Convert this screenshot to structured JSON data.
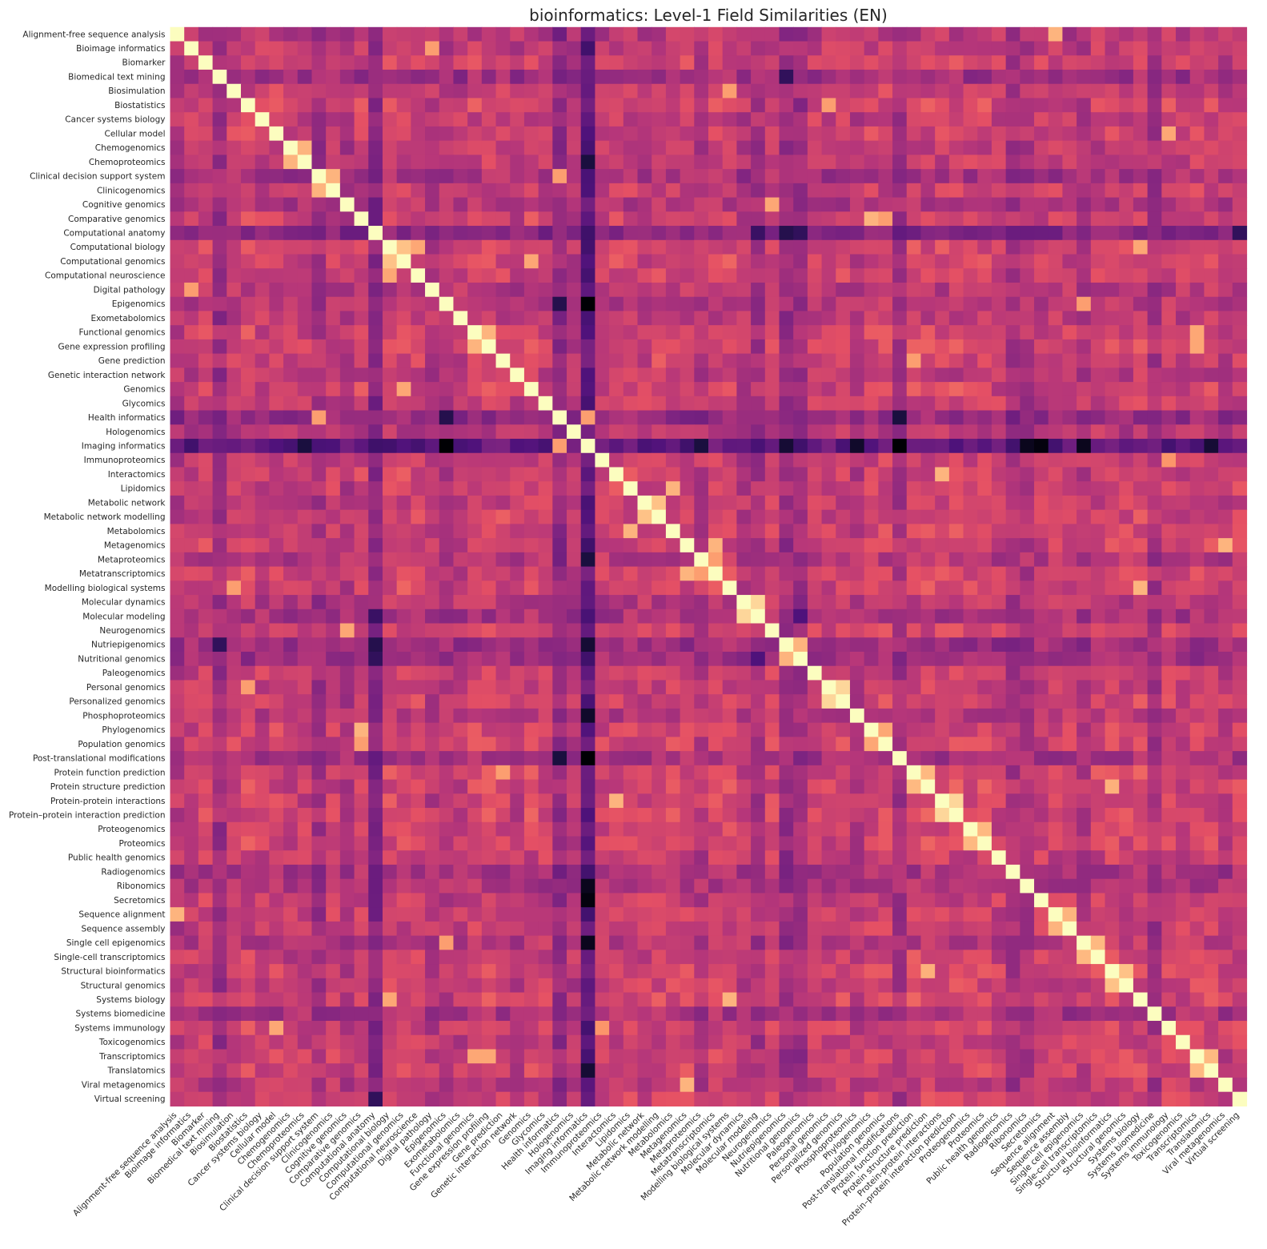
{
  "chart_data": {
    "type": "heatmap",
    "title": "bioinformatics: Level-1 Field Similarities (EN)",
    "colormap": "magma",
    "colorbar": false,
    "categories": [
      "Alignment-free sequence analysis",
      "Bioimage informatics",
      "Biomarker",
      "Biomedical text mining",
      "Biosimulation",
      "Biostatistics",
      "Cancer systems biology",
      "Cellular model",
      "Chemogenomics",
      "Chemoproteomics",
      "Clinical decision support system",
      "Clinicogenomics",
      "Cognitive genomics",
      "Comparative genomics",
      "Computational anatomy",
      "Computational biology",
      "Computational genomics",
      "Computational neuroscience",
      "Digital pathology",
      "Epigenomics",
      "Exometabolomics",
      "Functional genomics",
      "Gene expression profiling",
      "Gene prediction",
      "Genetic interaction network",
      "Genomics",
      "Glycomics",
      "Health informatics",
      "Hologenomics",
      "Imaging informatics",
      "Immunoproteomics",
      "Interactomics",
      "Lipidomics",
      "Metabolic network",
      "Metabolic network modelling",
      "Metabolomics",
      "Metagenomics",
      "Metaproteomics",
      "Metatranscriptomics",
      "Modelling biological systems",
      "Molecular dynamics",
      "Molecular modeling",
      "Neurogenomics",
      "Nutriepigenomics",
      "Nutritional genomics",
      "Paleogenomics",
      "Personal genomics",
      "Personalized genomics",
      "Phosphoproteomics",
      "Phylogenomics",
      "Population genomics",
      "Post-translational modifications",
      "Protein function prediction",
      "Protein structure prediction",
      "Protein-protein interactions",
      "Protein–protein interaction prediction",
      "Proteogenomics",
      "Proteomics",
      "Public health genomics",
      "Radiogenomics",
      "Ribonomics",
      "Secretomics",
      "Sequence alignment",
      "Sequence assembly",
      "Single cell epigenomics",
      "Single-cell transcriptomics",
      "Structural bioinformatics",
      "Structural genomics",
      "Systems biology",
      "Systems biomedicine",
      "Systems immunology",
      "Toxicogenomics",
      "Transcriptomics",
      "Translatomics",
      "Viral metagenomics",
      "Virtual screening"
    ],
    "value_range": [
      0,
      1
    ],
    "diagonal_value": 1.0,
    "row_mean": [
      0.5,
      0.55,
      0.58,
      0.42,
      0.56,
      0.6,
      0.55,
      0.57,
      0.52,
      0.54,
      0.45,
      0.55,
      0.48,
      0.58,
      0.35,
      0.6,
      0.6,
      0.58,
      0.5,
      0.5,
      0.52,
      0.6,
      0.6,
      0.58,
      0.52,
      0.6,
      0.55,
      0.38,
      0.5,
      0.22,
      0.56,
      0.58,
      0.58,
      0.55,
      0.6,
      0.6,
      0.58,
      0.5,
      0.58,
      0.6,
      0.5,
      0.45,
      0.58,
      0.42,
      0.42,
      0.58,
      0.55,
      0.58,
      0.5,
      0.58,
      0.58,
      0.45,
      0.6,
      0.6,
      0.58,
      0.6,
      0.6,
      0.6,
      0.55,
      0.45,
      0.47,
      0.55,
      0.55,
      0.55,
      0.5,
      0.58,
      0.6,
      0.58,
      0.6,
      0.45,
      0.58,
      0.55,
      0.6,
      0.58,
      0.52,
      0.57
    ],
    "pairs": [
      {
        "a": "Alignment-free sequence analysis",
        "b": "Sequence alignment",
        "value": 0.85
      },
      {
        "a": "Biostatistics",
        "b": "Personal genomics",
        "value": 0.8
      },
      {
        "a": "Chemogenomics",
        "b": "Chemoproteomics",
        "value": 0.85
      },
      {
        "a": "Clinical decision support system",
        "b": "Clinicogenomics",
        "value": 0.85
      },
      {
        "a": "Cognitive genomics",
        "b": "Neurogenomics",
        "value": 0.82
      },
      {
        "a": "Comparative genomics",
        "b": "Phylogenomics",
        "value": 0.85
      },
      {
        "a": "Comparative genomics",
        "b": "Population genomics",
        "value": 0.8
      },
      {
        "a": "Computational biology",
        "b": "Computational genomics",
        "value": 0.88
      },
      {
        "a": "Computational biology",
        "b": "Computational neuroscience",
        "value": 0.82
      },
      {
        "a": "Computational biology",
        "b": "Systems biology",
        "value": 0.82
      },
      {
        "a": "Computational genomics",
        "b": "Genomics",
        "value": 0.82
      },
      {
        "a": "Bioimage informatics",
        "b": "Digital pathology",
        "value": 0.8
      },
      {
        "a": "Functional genomics",
        "b": "Gene expression profiling",
        "value": 0.85
      },
      {
        "a": "Functional genomics",
        "b": "Transcriptomics",
        "value": 0.82
      },
      {
        "a": "Gene expression profiling",
        "b": "Transcriptomics",
        "value": 0.82
      },
      {
        "a": "Gene prediction",
        "b": "Protein function prediction",
        "value": 0.8
      },
      {
        "a": "Health informatics",
        "b": "Imaging informatics",
        "value": 0.8
      },
      {
        "a": "Health informatics",
        "b": "Clinical decision support system",
        "value": 0.8
      },
      {
        "a": "Lipidomics",
        "b": "Metabolomics",
        "value": 0.85
      },
      {
        "a": "Metabolic network",
        "b": "Metabolic network modelling",
        "value": 0.88
      },
      {
        "a": "Metagenomics",
        "b": "Metatranscriptomics",
        "value": 0.85
      },
      {
        "a": "Metagenomics",
        "b": "Viral metagenomics",
        "value": 0.85
      },
      {
        "a": "Metaproteomics",
        "b": "Metatranscriptomics",
        "value": 0.8
      },
      {
        "a": "Modelling biological systems",
        "b": "Systems biology",
        "value": 0.85
      },
      {
        "a": "Modelling biological systems",
        "b": "Biosimulation",
        "value": 0.8
      },
      {
        "a": "Molecular dynamics",
        "b": "Molecular modeling",
        "value": 0.92
      },
      {
        "a": "Nutriepigenomics",
        "b": "Nutritional genomics",
        "value": 0.85
      },
      {
        "a": "Personal genomics",
        "b": "Personalized genomics",
        "value": 0.92
      },
      {
        "a": "Phylogenomics",
        "b": "Population genomics",
        "value": 0.82
      },
      {
        "a": "Protein function prediction",
        "b": "Protein structure prediction",
        "value": 0.86
      },
      {
        "a": "Protein-protein interactions",
        "b": "Protein–protein interaction prediction",
        "value": 0.92
      },
      {
        "a": "Interactomics",
        "b": "Protein-protein interactions",
        "value": 0.85
      },
      {
        "a": "Proteogenomics",
        "b": "Proteomics",
        "value": 0.86
      },
      {
        "a": "Sequence alignment",
        "b": "Sequence assembly",
        "value": 0.85
      },
      {
        "a": "Single cell epigenomics",
        "b": "Single-cell transcriptomics",
        "value": 0.86
      },
      {
        "a": "Structural bioinformatics",
        "b": "Structural genomics",
        "value": 0.88
      },
      {
        "a": "Protein structure prediction",
        "b": "Structural bioinformatics",
        "value": 0.84
      },
      {
        "a": "Systems immunology",
        "b": "Immunoproteomics",
        "value": 0.78
      },
      {
        "a": "Transcriptomics",
        "b": "Translatomics",
        "value": 0.86
      },
      {
        "a": "Cellular model",
        "b": "Systems immunology",
        "value": 0.82
      },
      {
        "a": "Epigenomics",
        "b": "Single cell epigenomics",
        "value": 0.8
      },
      {
        "a": "Imaging informatics",
        "b": "Epigenomics",
        "value": 0.0
      },
      {
        "a": "Imaging informatics",
        "b": "Post-translational modifications",
        "value": 0.0
      },
      {
        "a": "Imaging informatics",
        "b": "Secretomics",
        "value": 0.02
      },
      {
        "a": "Imaging informatics",
        "b": "Ribonomics",
        "value": 0.05
      },
      {
        "a": "Imaging informatics",
        "b": "Single cell epigenomics",
        "value": 0.05
      },
      {
        "a": "Imaging informatics",
        "b": "Phosphoproteomics",
        "value": 0.08
      },
      {
        "a": "Imaging informatics",
        "b": "Chemoproteomics",
        "value": 0.12
      },
      {
        "a": "Imaging informatics",
        "b": "Translatomics",
        "value": 0.1
      },
      {
        "a": "Imaging informatics",
        "b": "Nutriepigenomics",
        "value": 0.1
      },
      {
        "a": "Imaging informatics",
        "b": "Metaproteomics",
        "value": 0.12
      },
      {
        "a": "Health informatics",
        "b": "Epigenomics",
        "value": 0.15
      },
      {
        "a": "Health informatics",
        "b": "Post-translational modifications",
        "value": 0.12
      },
      {
        "a": "Computational anatomy",
        "b": "Nutriepigenomics",
        "value": 0.15
      },
      {
        "a": "Computational anatomy",
        "b": "Nutritional genomics",
        "value": 0.18
      },
      {
        "a": "Computational anatomy",
        "b": "Virtual screening",
        "value": 0.18
      },
      {
        "a": "Biomedical text mining",
        "b": "Nutriepigenomics",
        "value": 0.18
      },
      {
        "a": "Computational anatomy",
        "b": "Molecular modeling",
        "value": 0.2
      },
      {
        "a": "Molecular modeling",
        "b": "Nutritional genomics",
        "value": 0.25
      }
    ]
  }
}
